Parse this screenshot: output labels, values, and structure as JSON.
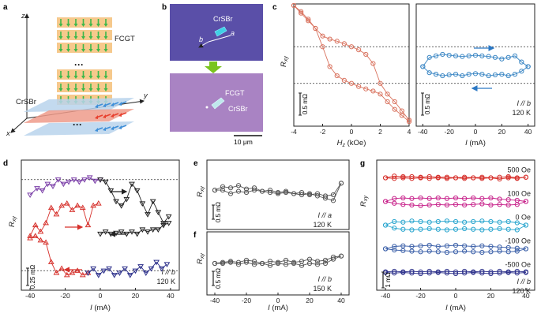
{
  "figure": {
    "panel_labels": {
      "a": "a",
      "b": "b",
      "c": "c",
      "d": "d",
      "e": "e",
      "f": "f",
      "g": "g"
    },
    "schematic": {
      "label_fcgt": "FCGT",
      "label_crsbr": "CrSBr",
      "dots": "···",
      "axis_x": "x",
      "axis_y": "y",
      "axis_z": "z",
      "color_fcgt_layer": "#f6c98c",
      "color_fcgt_spin": "#3db84a",
      "color_crsbr_layer": "#b9d4ec",
      "color_crsbr_spin": "#3f8fd8",
      "color_crsbr_red": "#ef9b8b"
    },
    "micrograph": {
      "label_crsbr_top": "CrSBr",
      "axis_a": "a",
      "axis_b": "b",
      "label_fcgt": "FCGT",
      "label_crsbr_bottom": "CrSBr",
      "scale_bar": "10 μm",
      "color_top_bg": "#5a4fa8",
      "color_bottom_bg": "#a983c3",
      "color_arrow": "#7ac41f"
    },
    "scalebars": {
      "c": "0.5 mΩ",
      "d": "0.25 mΩ",
      "e": "0.5 mΩ",
      "f": "0.5 mΩ",
      "g": "1 mΩ"
    }
  },
  "chart_data": [
    {
      "id": "c-left",
      "type": "line",
      "title": "",
      "xlabel": "H_z (kOe)",
      "ylabel": "R_xy",
      "xticks": [
        -4,
        -2,
        0,
        2,
        4
      ],
      "xlim": [
        -4,
        4
      ],
      "ylim": [
        -2,
        2
      ],
      "color": "#d9735f",
      "series": [
        {
          "name": "sweep down",
          "x": [
            4,
            3.5,
            3,
            2.5,
            2,
            1.5,
            1,
            0.5,
            0,
            -0.5,
            -1,
            -1.5,
            -2,
            -2.5,
            -3,
            -3.5,
            -4
          ],
          "values": [
            -1.8,
            -1.5,
            -1.2,
            -0.95,
            -0.6,
            0.05,
            0.35,
            0.5,
            0.6,
            0.7,
            0.78,
            0.85,
            0.95,
            1.2,
            1.5,
            1.75,
            1.95
          ]
        },
        {
          "name": "sweep up",
          "x": [
            -4,
            -3.5,
            -3,
            -2.5,
            -2,
            -1.5,
            -1,
            -0.5,
            0,
            0.5,
            1,
            1.5,
            2,
            2.5,
            3,
            3.5,
            4
          ],
          "values": [
            1.95,
            1.7,
            1.45,
            1.2,
            0.6,
            -0.05,
            -0.35,
            -0.5,
            -0.6,
            -0.7,
            -0.78,
            -0.85,
            -0.95,
            -1.2,
            -1.45,
            -1.65,
            -1.85
          ]
        }
      ],
      "reference_lines": [
        0.6,
        -0.6
      ]
    },
    {
      "id": "c-right",
      "type": "scatter",
      "xlabel": "I (mA)",
      "xticks": [
        -40,
        -20,
        0,
        20,
        40
      ],
      "xlim": [
        -45,
        45
      ],
      "ylim": [
        -2,
        2
      ],
      "color": "#3a86c4",
      "annotation": [
        "I // b",
        "120 K"
      ],
      "series": [
        {
          "name": "sweep up",
          "x": [
            -40,
            -35,
            -30,
            -25,
            -20,
            -15,
            -10,
            -5,
            0,
            5,
            10,
            15,
            20,
            25,
            30,
            35,
            40
          ],
          "values": [
            -0.05,
            0.25,
            0.3,
            0.35,
            0.32,
            0.3,
            0.28,
            0.3,
            0.32,
            0.3,
            0.28,
            0.25,
            0.2,
            0.25,
            0.3,
            0.1,
            -0.05
          ]
        },
        {
          "name": "sweep down",
          "x": [
            40,
            35,
            30,
            25,
            20,
            15,
            10,
            5,
            0,
            -5,
            -10,
            -15,
            -20,
            -25,
            -30,
            -35,
            -40
          ],
          "values": [
            -0.05,
            -0.2,
            -0.3,
            -0.35,
            -0.3,
            -0.32,
            -0.35,
            -0.3,
            -0.28,
            -0.3,
            -0.35,
            -0.3,
            -0.32,
            -0.35,
            -0.3,
            -0.25,
            -0.05
          ]
        }
      ],
      "reference_lines": [
        0.6,
        -0.6
      ]
    },
    {
      "id": "d",
      "type": "scatter",
      "xlabel": "I (mA)",
      "ylabel": "R_xy",
      "xticks": [
        -40,
        -20,
        0,
        20,
        40
      ],
      "xlim": [
        -45,
        45
      ],
      "ylim": [
        -1.6,
        1.4
      ],
      "annotation": [
        "I // b",
        "120 K"
      ],
      "series": [
        {
          "name": "purple",
          "color": "#7b3fa8",
          "marker": "triangle-down",
          "x": [
            -40,
            -36,
            -33,
            -30,
            -27,
            -24,
            -21,
            -18,
            -15,
            -12,
            -9,
            -6,
            -3,
            0
          ],
          "values": [
            0.6,
            0.75,
            0.7,
            0.85,
            0.8,
            0.95,
            0.85,
            0.9,
            0.95,
            0.9,
            0.95,
            1.0,
            0.92,
            0.95
          ]
        },
        {
          "name": "black",
          "color": "#222222",
          "marker": "triangle-down",
          "x": [
            0,
            3,
            6,
            9,
            12,
            15,
            18,
            21,
            24,
            27,
            30,
            33,
            36,
            39
          ],
          "values": [
            0.95,
            0.9,
            0.7,
            0.45,
            0.35,
            0.5,
            0.85,
            0.7,
            0.4,
            0.15,
            0.45,
            0.2,
            -0.05,
            0.1
          ]
        },
        {
          "name": "black-lower",
          "color": "#222222",
          "marker": "triangle-down",
          "x": [
            39,
            36,
            33,
            30,
            27,
            24,
            21,
            18,
            15,
            12,
            9,
            6,
            3,
            0
          ],
          "values": [
            -0.05,
            -0.1,
            -0.2,
            -0.2,
            -0.25,
            -0.2,
            -0.3,
            -0.25,
            -0.3,
            -0.25,
            -0.28,
            -0.3,
            -0.25,
            -0.3
          ]
        },
        {
          "name": "red",
          "color": "#d6302b",
          "marker": "triangle-up",
          "x": [
            -40,
            -37,
            -34,
            -31,
            -28,
            -25,
            -22,
            -19,
            -16,
            -13,
            -10,
            -7,
            -4,
            -1
          ],
          "values": [
            -0.35,
            -0.1,
            -0.25,
            -0.05,
            0.3,
            0.15,
            0.35,
            0.4,
            0.25,
            0.35,
            0.3,
            -0.1,
            0.35,
            0.4
          ]
        },
        {
          "name": "red-lower",
          "color": "#d6302b",
          "marker": "triangle-up",
          "x": [
            -40,
            -37,
            -34,
            -31,
            -28,
            -25,
            -22,
            -19,
            -16,
            -13,
            -10,
            -7
          ],
          "values": [
            -0.4,
            -0.35,
            -0.45,
            -0.5,
            -0.95,
            -1.2,
            -1.1,
            -1.25,
            -1.2,
            -1.15,
            -1.25,
            -1.2
          ]
        },
        {
          "name": "navy",
          "color": "#2b2f8a",
          "marker": "triangle-down",
          "x": [
            -7,
            -4,
            -1,
            2,
            5,
            8,
            11,
            14,
            17,
            20,
            23,
            26,
            29,
            32,
            35,
            38
          ],
          "values": [
            -1.2,
            -1.1,
            -1.25,
            -1.15,
            -1.1,
            -1.25,
            -1.2,
            -1.1,
            -1.25,
            -1.15,
            -1.05,
            -1.2,
            -1.1,
            -0.95,
            -1.1,
            -1.0
          ]
        }
      ],
      "reference_lines": [
        0.95,
        -1.15
      ]
    },
    {
      "id": "e",
      "type": "line",
      "ylabel": "R_xy",
      "xlim": [
        -45,
        45
      ],
      "ylim": [
        -1.5,
        1.5
      ],
      "color": "#555555",
      "annotation": [
        "I // a",
        "120 K"
      ],
      "series": [
        {
          "name": "up",
          "x": [
            -40,
            -35,
            -30,
            -25,
            -20,
            -15,
            -10,
            -5,
            0,
            5,
            10,
            15,
            20,
            25,
            30,
            35,
            40
          ],
          "values": [
            0.2,
            0.35,
            0.3,
            0.4,
            0.25,
            0.3,
            0.15,
            0.2,
            0.1,
            0.15,
            0.05,
            0.1,
            0.0,
            0.05,
            -0.05,
            0.0,
            0.5
          ]
        },
        {
          "name": "down",
          "x": [
            40,
            35,
            30,
            25,
            20,
            15,
            10,
            5,
            0,
            -5,
            -10,
            -15,
            -20,
            -25,
            -30,
            -35,
            -40
          ],
          "values": [
            0.5,
            -0.25,
            -0.15,
            -0.05,
            0.05,
            0.0,
            0.05,
            0.1,
            0.05,
            0.1,
            0.15,
            0.2,
            0.1,
            0.15,
            0.05,
            0.2,
            0.2
          ]
        }
      ]
    },
    {
      "id": "f",
      "type": "line",
      "xlabel": "I (mA)",
      "ylabel": "R_xy",
      "xticks": [
        -40,
        -20,
        0,
        20,
        40
      ],
      "xlim": [
        -45,
        45
      ],
      "ylim": [
        -1.5,
        1.5
      ],
      "color": "#555555",
      "annotation": [
        "I // b",
        "150 K"
      ],
      "series": [
        {
          "name": "up",
          "x": [
            -40,
            -35,
            -30,
            -25,
            -20,
            -15,
            -10,
            -5,
            0,
            5,
            10,
            15,
            20,
            25,
            30,
            35,
            40
          ],
          "values": [
            0.0,
            0.05,
            0.1,
            0.05,
            0.15,
            0.1,
            0.0,
            0.1,
            0.05,
            0.15,
            0.05,
            0.1,
            0.2,
            0.1,
            0.15,
            0.3,
            0.35
          ]
        },
        {
          "name": "down",
          "x": [
            40,
            35,
            30,
            25,
            20,
            15,
            10,
            5,
            0,
            -5,
            -10,
            -15,
            -20,
            -25,
            -30,
            -35,
            -40
          ],
          "values": [
            0.35,
            0.2,
            0.0,
            -0.05,
            0.0,
            -0.1,
            0.0,
            -0.05,
            0.0,
            -0.1,
            0.0,
            -0.05,
            0.05,
            -0.05,
            0.05,
            0.0,
            0.0
          ]
        }
      ]
    },
    {
      "id": "g",
      "type": "line",
      "xlabel": "I (mA)",
      "ylabel": "R_xy",
      "xticks": [
        -40,
        -20,
        0,
        20,
        40
      ],
      "xlim": [
        -45,
        45
      ],
      "ylim": [
        -5.5,
        5.5
      ],
      "annotation": [
        "I // b",
        "120 K"
      ],
      "series": [
        {
          "name": "500 Oe",
          "color": "#d6302b",
          "offset": 4.0,
          "up": [
            0.0,
            0.15,
            0.1,
            0.1,
            0.05,
            0.1,
            0.05,
            0.05,
            0.0,
            0.05,
            0.0,
            0.05,
            0.0,
            0.05,
            0.1,
            0.0,
            0.05
          ],
          "down": [
            0.05,
            -0.05,
            0.0,
            -0.1,
            0.0,
            -0.05,
            0.0,
            -0.05,
            0.0,
            -0.05,
            0.0,
            -0.05,
            0.0,
            -0.05,
            0.0,
            -0.05,
            0.0
          ]
        },
        {
          "name": "100 Oe",
          "color": "#c7218a",
          "offset": 2.0,
          "up": [
            0.0,
            0.25,
            0.3,
            0.25,
            0.3,
            0.25,
            0.3,
            0.25,
            0.3,
            0.25,
            0.3,
            0.25,
            0.3,
            0.2,
            0.15,
            0.1,
            0.0
          ],
          "down": [
            0.0,
            -0.25,
            -0.3,
            -0.25,
            -0.3,
            -0.2,
            -0.25,
            -0.3,
            -0.25,
            -0.3,
            -0.25,
            -0.3,
            -0.35,
            -0.3,
            -0.25,
            -0.15,
            0.0
          ]
        },
        {
          "name": "0 Oe",
          "color": "#2aa6cf",
          "offset": 0.0,
          "up": [
            0.0,
            0.3,
            0.25,
            0.35,
            0.3,
            0.25,
            0.3,
            0.35,
            0.3,
            0.25,
            0.3,
            0.35,
            0.3,
            0.25,
            0.3,
            0.2,
            0.0
          ],
          "down": [
            0.0,
            -0.4,
            -0.35,
            -0.3,
            -0.35,
            -0.4,
            -0.35,
            -0.3,
            -0.35,
            -0.4,
            -0.35,
            -0.3,
            -0.35,
            -0.4,
            -0.35,
            -0.25,
            0.0
          ]
        },
        {
          "name": "-100 Oe",
          "color": "#3a5fa8",
          "offset": -2.0,
          "up": [
            0.0,
            0.2,
            0.25,
            0.2,
            0.25,
            0.3,
            0.2,
            0.25,
            0.3,
            0.25,
            0.2,
            0.25,
            0.2,
            0.15,
            0.1,
            0.05,
            0.0
          ],
          "down": [
            0.0,
            -0.2,
            -0.25,
            -0.2,
            -0.25,
            -0.3,
            -0.25,
            -0.2,
            -0.25,
            -0.3,
            -0.25,
            -0.2,
            -0.25,
            -0.2,
            -0.15,
            -0.1,
            0.0
          ]
        },
        {
          "name": "-500 Oe",
          "color": "#2b2f8a",
          "offset": -4.0,
          "up": [
            0.05,
            0.1,
            0.05,
            0.1,
            0.05,
            0.1,
            0.05,
            0.1,
            0.05,
            0.1,
            0.05,
            0.1,
            0.05,
            0.1,
            0.05,
            0.1,
            0.05
          ],
          "down": [
            0.0,
            -0.05,
            0.0,
            -0.05,
            -0.1,
            -0.05,
            0.0,
            -0.05,
            -0.1,
            -0.05,
            0.0,
            -0.05,
            -0.1,
            -0.05,
            0.0,
            -0.05,
            0.0
          ]
        }
      ],
      "x": [
        -40,
        -35,
        -30,
        -25,
        -20,
        -15,
        -10,
        -5,
        0,
        5,
        10,
        15,
        20,
        25,
        30,
        35,
        40
      ]
    }
  ]
}
